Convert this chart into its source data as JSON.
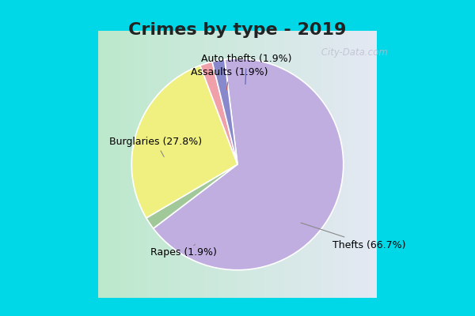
{
  "title": "Crimes by type - 2019",
  "slices": [
    {
      "label": "Thefts (66.7%)",
      "value": 66.7,
      "color": "#c0aee0"
    },
    {
      "label": "Rapes (1.9%)",
      "value": 1.9,
      "color": "#a0c898"
    },
    {
      "label": "Burglaries (27.8%)",
      "value": 27.8,
      "color": "#f0f080"
    },
    {
      "label": "Assaults (1.9%)",
      "value": 1.9,
      "color": "#f0a0a8"
    },
    {
      "label": "Auto thefts (1.9%)",
      "value": 1.9,
      "color": "#8888cc"
    }
  ],
  "start_angle": 97,
  "background_border": "#00d8e8",
  "background_inner_left": "#b8e8c8",
  "background_inner_right": "#e8e8f8",
  "title_fontsize": 16,
  "label_fontsize": 9,
  "watermark": " City-Data.com"
}
